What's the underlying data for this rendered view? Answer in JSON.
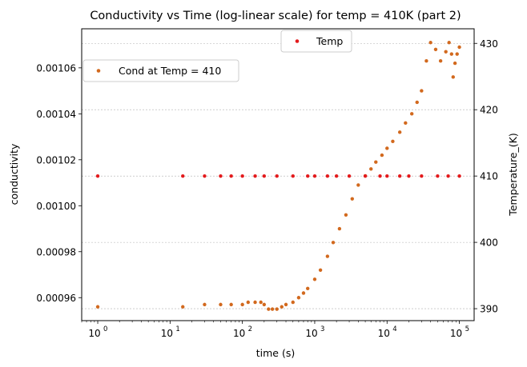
{
  "chart_data": {
    "type": "scatter",
    "title": "Conductivity vs Time (log-linear scale) for temp = 410K (part 2)",
    "xlabel": "time (s)",
    "ylabel_left": "conductivity",
    "ylabel_right": "Temperature_(K)",
    "x_scale": "log",
    "xlim": [
      0.6,
      160000
    ],
    "ylim_left": [
      0.00095,
      0.001077
    ],
    "ylim_right": [
      388.2,
      432.2
    ],
    "x_ticks": [
      {
        "base": "10",
        "exp": "0",
        "value": 1
      },
      {
        "base": "10",
        "exp": "1",
        "value": 10
      },
      {
        "base": "10",
        "exp": "2",
        "value": 100
      },
      {
        "base": "10",
        "exp": "3",
        "value": 1000
      },
      {
        "base": "10",
        "exp": "4",
        "value": 10000
      },
      {
        "base": "10",
        "exp": "5",
        "value": 100000
      }
    ],
    "y_left_ticks": [
      "0.00096",
      "0.00098",
      "0.00100",
      "0.00102",
      "0.00104",
      "0.00106"
    ],
    "y_left_tick_values": [
      0.00096,
      0.00098,
      0.001,
      0.00102,
      0.00104,
      0.00106
    ],
    "y_right_ticks": [
      "390",
      "400",
      "410",
      "420",
      "430"
    ],
    "y_right_tick_values": [
      390,
      400,
      410,
      420,
      430
    ],
    "grid": "horizontal dashed at right-axis ticks",
    "series": [
      {
        "name": "Cond at Temp = 410",
        "axis": "left",
        "color": "#d2691e",
        "points": [
          [
            1,
            0.000956
          ],
          [
            15,
            0.000956
          ],
          [
            30,
            0.000957
          ],
          [
            50,
            0.000957
          ],
          [
            70,
            0.000957
          ],
          [
            100,
            0.000957
          ],
          [
            120,
            0.000958
          ],
          [
            150,
            0.000958
          ],
          [
            180,
            0.000958
          ],
          [
            200,
            0.000957
          ],
          [
            230,
            0.000955
          ],
          [
            260,
            0.000955
          ],
          [
            300,
            0.000955
          ],
          [
            350,
            0.000956
          ],
          [
            400,
            0.000957
          ],
          [
            500,
            0.000958
          ],
          [
            600,
            0.00096
          ],
          [
            700,
            0.000962
          ],
          [
            800,
            0.000964
          ],
          [
            1000,
            0.000968
          ],
          [
            1200,
            0.000972
          ],
          [
            1500,
            0.000978
          ],
          [
            1800,
            0.000984
          ],
          [
            2200,
            0.00099
          ],
          [
            2700,
            0.000996
          ],
          [
            3300,
            0.001003
          ],
          [
            4000,
            0.001009
          ],
          [
            5000,
            0.001013
          ],
          [
            6000,
            0.001016
          ],
          [
            7000,
            0.001019
          ],
          [
            8500,
            0.001022
          ],
          [
            10000,
            0.001025
          ],
          [
            12000,
            0.001028
          ],
          [
            15000,
            0.001032
          ],
          [
            18000,
            0.001036
          ],
          [
            22000,
            0.00104
          ],
          [
            26000,
            0.001045
          ],
          [
            30000,
            0.00105
          ],
          [
            35000,
            0.001063
          ],
          [
            40000,
            0.001071
          ],
          [
            47000,
            0.001068
          ],
          [
            55000,
            0.001063
          ],
          [
            65000,
            0.001067
          ],
          [
            72000,
            0.001071
          ],
          [
            78000,
            0.001066
          ],
          [
            82000,
            0.001056
          ],
          [
            87000,
            0.001062
          ],
          [
            93000,
            0.001066
          ],
          [
            100000,
            0.001069
          ]
        ]
      },
      {
        "name": "Temp",
        "axis": "right",
        "color": "#e31a1c",
        "points": [
          [
            1,
            410
          ],
          [
            15,
            410
          ],
          [
            30,
            410
          ],
          [
            50,
            410
          ],
          [
            70,
            410
          ],
          [
            100,
            410
          ],
          [
            150,
            410
          ],
          [
            200,
            410
          ],
          [
            300,
            410
          ],
          [
            500,
            410
          ],
          [
            800,
            410
          ],
          [
            1000,
            410
          ],
          [
            1500,
            410
          ],
          [
            2000,
            410
          ],
          [
            3000,
            410
          ],
          [
            5000,
            410
          ],
          [
            8000,
            410
          ],
          [
            10000,
            410
          ],
          [
            15000,
            410
          ],
          [
            20000,
            410
          ],
          [
            30000,
            410
          ],
          [
            50000,
            410
          ],
          [
            70000,
            410
          ],
          [
            100000,
            410
          ]
        ]
      }
    ],
    "legend_left": {
      "label": "Cond at Temp = 410",
      "placement": "upper-left"
    },
    "legend_right": {
      "label": "Temp",
      "placement": "upper-center"
    }
  }
}
